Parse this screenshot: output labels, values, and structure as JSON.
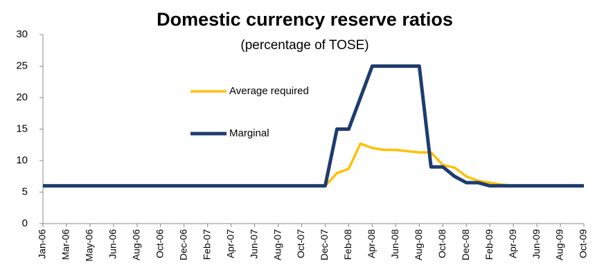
{
  "chart_data": {
    "type": "line",
    "title": "Domestic currency reserve ratios",
    "subtitle": "(percentage of TOSE)",
    "categories": [
      "Jan-06",
      null,
      "Mar-06",
      null,
      "May-06",
      null,
      "Jun-06",
      null,
      "Aug-06",
      null,
      "Oct-06",
      null,
      "Dec-06",
      null,
      "Feb-07",
      null,
      "Apr-07",
      null,
      "Jun-07",
      null,
      "Aug-07",
      null,
      "Oct-07",
      null,
      "Dec-07",
      null,
      "Feb-08",
      null,
      "Apr-08",
      null,
      "Jun-08",
      null,
      "Aug-08",
      null,
      "Oct-08",
      null,
      "Dec-08",
      null,
      "Feb-09",
      null,
      "Apr-09",
      null,
      "Jun-09",
      null,
      "Aug-09",
      null,
      "Oct-09"
    ],
    "series": [
      {
        "name": "Average required",
        "color": "#FFC000",
        "values": [
          6,
          6,
          6,
          6,
          6,
          6,
          6,
          6,
          6,
          6,
          6,
          6,
          6,
          6,
          6,
          6,
          6,
          6,
          6,
          6,
          6,
          6,
          6,
          6,
          6,
          8,
          8.7,
          12.7,
          12,
          11.7,
          11.7,
          11.5,
          11.3,
          11.3,
          9.3,
          8.9,
          7.5,
          6.8,
          6.5,
          6.2,
          6,
          6,
          6,
          6,
          6,
          6,
          6
        ]
      },
      {
        "name": "Marginal",
        "color": "#1F3C6E",
        "values": [
          6,
          6,
          6,
          6,
          6,
          6,
          6,
          6,
          6,
          6,
          6,
          6,
          6,
          6,
          6,
          6,
          6,
          6,
          6,
          6,
          6,
          6,
          6,
          6,
          6,
          15,
          15,
          20,
          25,
          25,
          25,
          25,
          25,
          9,
          9,
          7.5,
          6.5,
          6.5,
          6,
          6,
          6,
          6,
          6,
          6,
          6,
          6,
          6
        ]
      }
    ],
    "ylim": [
      0,
      30
    ],
    "yticks": [
      0,
      5,
      10,
      15,
      20,
      25,
      30
    ]
  }
}
